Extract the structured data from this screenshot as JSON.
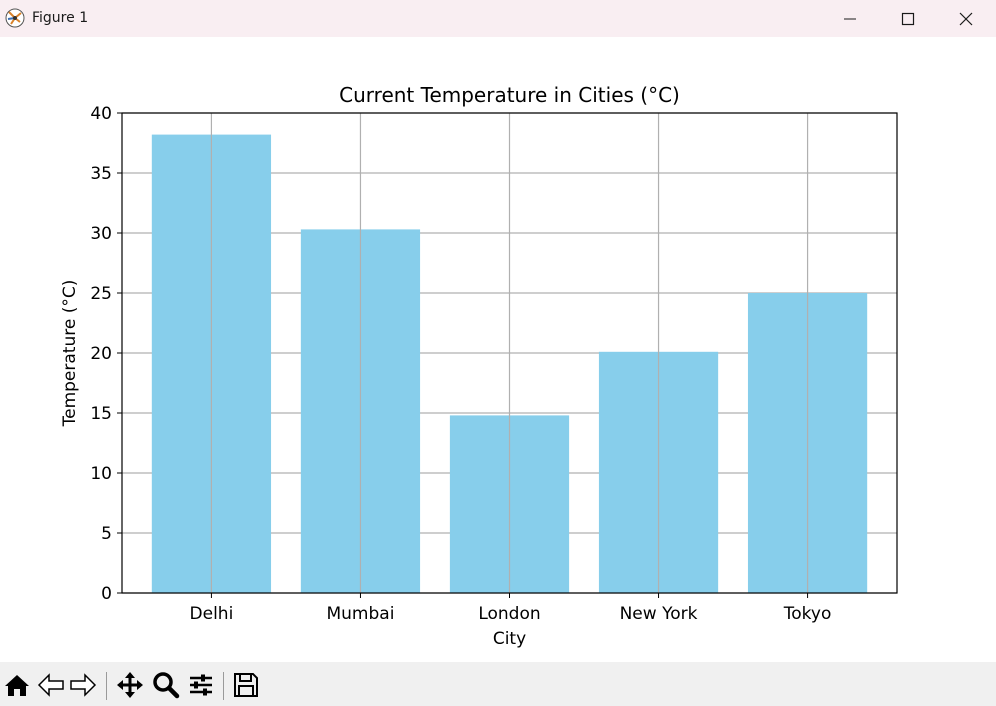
{
  "window": {
    "title": "Figure 1",
    "minimize_icon": "minimize-icon",
    "maximize_icon": "maximize-icon",
    "close_icon": "close-icon"
  },
  "toolbar": {
    "tools": [
      "home-icon",
      "back-arrow-icon",
      "forward-arrow-icon",
      "pan-icon",
      "zoom-icon",
      "configure-subplots-icon",
      "save-icon"
    ]
  },
  "chart_data": {
    "type": "bar",
    "title": "Current Temperature in Cities (°C)",
    "xlabel": "City",
    "ylabel": "Temperature (°C)",
    "categories": [
      "Delhi",
      "Mumbai",
      "London",
      "New York",
      "Tokyo"
    ],
    "values": [
      38.2,
      30.3,
      14.8,
      20.1,
      25.0
    ],
    "ylim": [
      0,
      40
    ],
    "yticks": [
      0,
      5,
      10,
      15,
      20,
      25,
      30,
      35,
      40
    ],
    "grid": true,
    "bar_color": "#87ceeb",
    "grid_color": "#b0b0b0"
  }
}
